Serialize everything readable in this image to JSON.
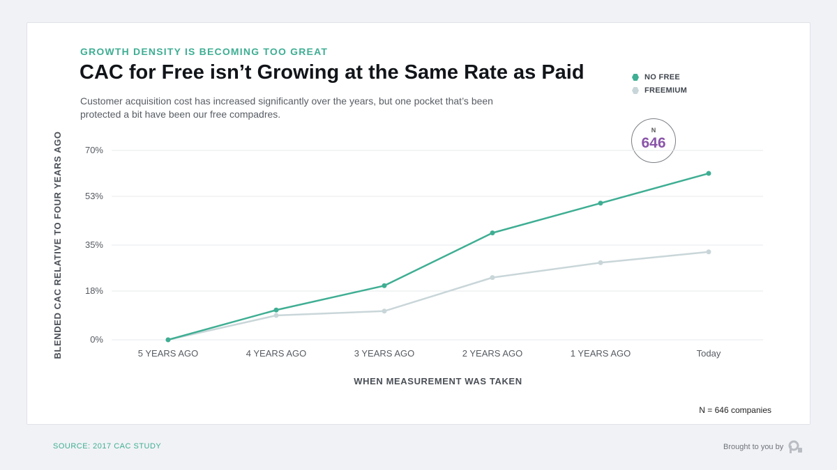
{
  "header": {
    "eyebrow": "GROWTH DENSITY IS BECOMING TOO GREAT",
    "title": "CAC for Free isn’t Growing at the Same Rate as Paid",
    "subtitle": "Customer acquisition cost has increased significantly over the years, but one pocket that’s been protected a bit have been our free compadres."
  },
  "badge": {
    "label": "N",
    "value": "646"
  },
  "footnote": "N = 646 companies",
  "footer": {
    "source": "SOURCE: 2017 CAC STUDY",
    "credit": "Brought to you by",
    "logo_icon": "profitwell-logo-icon"
  },
  "colors": {
    "no_free": "#3fae93",
    "freemium": "#c9d6d9",
    "accent": "#8a55a8"
  },
  "chart_data": {
    "type": "line",
    "categories": [
      "5 YEARS AGO",
      "4 YEARS AGO",
      "3 YEARS AGO",
      "2 YEARS AGO",
      "1 YEARS AGO",
      "Today"
    ],
    "series": [
      {
        "name": "NO FREE",
        "values": [
          0,
          11,
          20,
          39.5,
          50.5,
          61.5
        ]
      },
      {
        "name": "FREEMIUM",
        "values": [
          0,
          9,
          10.6,
          23,
          28.5,
          32.5
        ]
      }
    ],
    "yticks": [
      0,
      18,
      35,
      53,
      70
    ],
    "ytick_labels": [
      "0%",
      "18%",
      "35%",
      "53%",
      "70%"
    ],
    "ylim": [
      0,
      70
    ],
    "xlabel": "WHEN MEASUREMENT WAS TAKEN",
    "ylabel": "BLENDED CAC RELATIVE TO FOUR YEARS AGO",
    "grid": true,
    "legend_position": "top-right"
  }
}
